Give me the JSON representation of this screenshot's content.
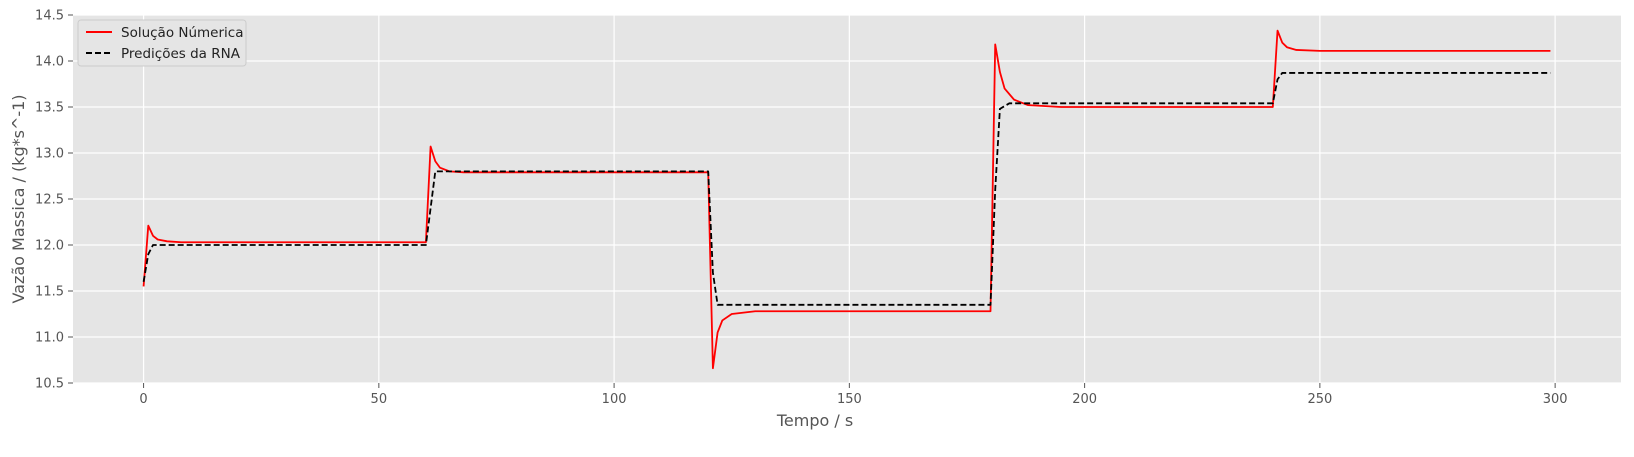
{
  "chart_data": {
    "type": "line",
    "title": "",
    "xlabel": "Tempo / s",
    "ylabel": "Vazão Massica /  (kg*s^-1)",
    "xlim": [
      -15,
      314
    ],
    "ylim": [
      10.5,
      14.5
    ],
    "xticks": [
      0,
      50,
      100,
      150,
      200,
      250,
      300
    ],
    "yticks": [
      10.5,
      11.0,
      11.5,
      12.0,
      12.5,
      13.0,
      13.5,
      14.0,
      14.5
    ],
    "xtick_labels": [
      "0",
      "50",
      "100",
      "150",
      "200",
      "250",
      "300"
    ],
    "ytick_labels": [
      "10.5",
      "11.0",
      "11.5",
      "12.0",
      "12.5",
      "13.0",
      "13.5",
      "14.0",
      "14.5"
    ],
    "grid": true,
    "legend_position": "top-left",
    "series": [
      {
        "name": "Solução Númerica",
        "color": "#ff0000",
        "style": "solid",
        "x": [
          0,
          1,
          2,
          3,
          5,
          8,
          60,
          61,
          62,
          63,
          65,
          68,
          120,
          121,
          122,
          123,
          125,
          130,
          180,
          181,
          182,
          183,
          185,
          188,
          195,
          240,
          241,
          242,
          243,
          245,
          250,
          299
        ],
        "y": [
          11.55,
          12.21,
          12.1,
          12.06,
          12.04,
          12.03,
          12.03,
          13.07,
          12.91,
          12.84,
          12.8,
          12.79,
          12.79,
          10.66,
          11.05,
          11.18,
          11.25,
          11.28,
          11.28,
          14.18,
          13.88,
          13.7,
          13.58,
          13.52,
          13.5,
          13.5,
          14.33,
          14.2,
          14.15,
          14.12,
          14.11,
          14.11
        ]
      },
      {
        "name": "Predições da RNA",
        "color": "#000000",
        "style": "dashed",
        "x": [
          0,
          1,
          2,
          60,
          61,
          62,
          120,
          121,
          122,
          180,
          181,
          182,
          184,
          240,
          241,
          242,
          299
        ],
        "y": [
          11.6,
          11.9,
          12.0,
          12.0,
          12.4,
          12.8,
          12.8,
          11.7,
          11.35,
          11.35,
          12.6,
          13.48,
          13.54,
          13.54,
          13.8,
          13.87,
          13.87
        ]
      }
    ]
  }
}
